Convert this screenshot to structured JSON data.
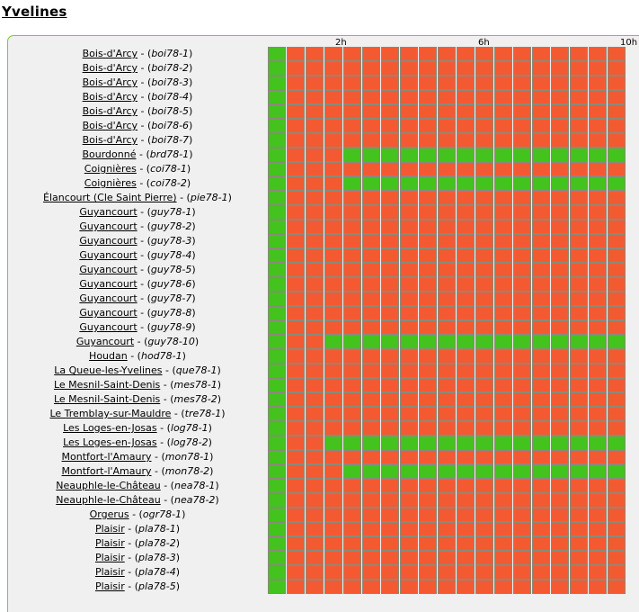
{
  "page": {
    "title": "Yvelines"
  },
  "timeline": {
    "hour_labels": [
      "2h",
      "6h",
      "10h"
    ],
    "colors": {
      "up": "#44c21e",
      "down": "#f45a32",
      "grid_border": "#8a8a7a"
    }
  },
  "stations": [
    {
      "city": "Bois-d'Arcy",
      "code": "boi78-1",
      "status": "1000000000000000000"
    },
    {
      "city": "Bois-d'Arcy",
      "code": "boi78-2",
      "status": "1000000000000000000"
    },
    {
      "city": "Bois-d'Arcy",
      "code": "boi78-3",
      "status": "1000000000000000000"
    },
    {
      "city": "Bois-d'Arcy",
      "code": "boi78-4",
      "status": "1000000000000000000"
    },
    {
      "city": "Bois-d'Arcy",
      "code": "boi78-5",
      "status": "1000000000000000000"
    },
    {
      "city": "Bois-d'Arcy",
      "code": "boi78-6",
      "status": "1000000000000000000"
    },
    {
      "city": "Bois-d'Arcy",
      "code": "boi78-7",
      "status": "1000000000000000000"
    },
    {
      "city": "Bourdonné",
      "code": "brd78-1",
      "status": "1000111111111111111"
    },
    {
      "city": "Coignières",
      "code": "coi78-1",
      "status": "1000000000000000000"
    },
    {
      "city": "Coignières",
      "code": "coi78-2",
      "status": "1000111111111111111"
    },
    {
      "city": "Élancourt (Cle Saint Pierre)",
      "code": "pie78-1",
      "status": "1000000000000000000"
    },
    {
      "city": "Guyancourt",
      "code": "guy78-1",
      "status": "1000000000000000000"
    },
    {
      "city": "Guyancourt",
      "code": "guy78-2",
      "status": "1000000000000000000"
    },
    {
      "city": "Guyancourt",
      "code": "guy78-3",
      "status": "1000000000000000000"
    },
    {
      "city": "Guyancourt",
      "code": "guy78-4",
      "status": "1000000000000000000"
    },
    {
      "city": "Guyancourt",
      "code": "guy78-5",
      "status": "1000000000000000000"
    },
    {
      "city": "Guyancourt",
      "code": "guy78-6",
      "status": "1000000000000000000"
    },
    {
      "city": "Guyancourt",
      "code": "guy78-7",
      "status": "1000000000000000000"
    },
    {
      "city": "Guyancourt",
      "code": "guy78-8",
      "status": "1000000000000000000"
    },
    {
      "city": "Guyancourt",
      "code": "guy78-9",
      "status": "1000000000000000000"
    },
    {
      "city": "Guyancourt",
      "code": "guy78-10",
      "status": "1001111111111111111"
    },
    {
      "city": "Houdan",
      "code": "hod78-1",
      "status": "1000000000000000000"
    },
    {
      "city": "La Queue-les-Yvelines",
      "code": "que78-1",
      "status": "1000000000000000000"
    },
    {
      "city": "Le Mesnil-Saint-Denis",
      "code": "mes78-1",
      "status": "1000000000000000000"
    },
    {
      "city": "Le Mesnil-Saint-Denis",
      "code": "mes78-2",
      "status": "1000000000000000000"
    },
    {
      "city": "Le Tremblay-sur-Mauldre",
      "code": "tre78-1",
      "status": "1000000000000000000"
    },
    {
      "city": "Les Loges-en-Josas",
      "code": "log78-1",
      "status": "1000000000000000000"
    },
    {
      "city": "Les Loges-en-Josas",
      "code": "log78-2",
      "status": "1001111111111111111"
    },
    {
      "city": "Montfort-l'Amaury",
      "code": "mon78-1",
      "status": "1000000000000000000"
    },
    {
      "city": "Montfort-l'Amaury",
      "code": "mon78-2",
      "status": "1000111111111111111"
    },
    {
      "city": "Neauphle-le-Château",
      "code": "nea78-1",
      "status": "1000000000000000000"
    },
    {
      "city": "Neauphle-le-Château",
      "code": "nea78-2",
      "status": "1000000000000000000"
    },
    {
      "city": "Orgerus",
      "code": "ogr78-1",
      "status": "1000000000000000000"
    },
    {
      "city": "Plaisir",
      "code": "pla78-1",
      "status": "1000000000000000000"
    },
    {
      "city": "Plaisir",
      "code": "pla78-2",
      "status": "1000000000000000000"
    },
    {
      "city": "Plaisir",
      "code": "pla78-3",
      "status": "1000000000000000000"
    },
    {
      "city": "Plaisir",
      "code": "pla78-4",
      "status": "1000000000000000000"
    },
    {
      "city": "Plaisir",
      "code": "pla78-5",
      "status": "1000000000000000000"
    }
  ]
}
